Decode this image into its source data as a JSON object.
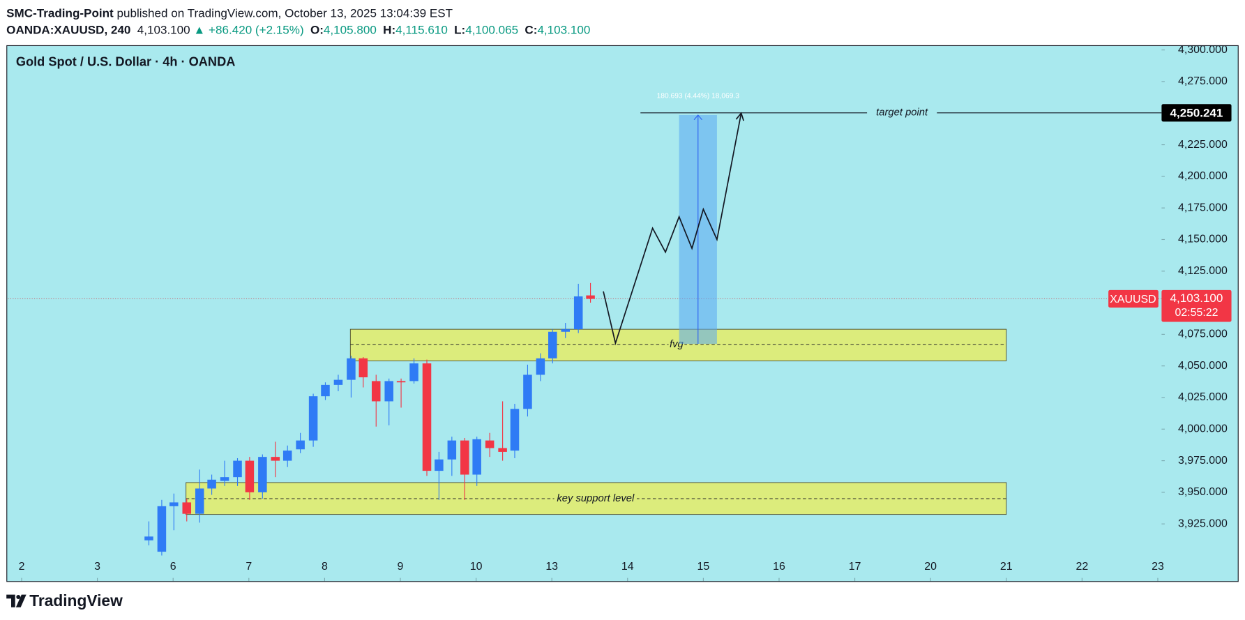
{
  "chart_data": {
    "type": "candlestick",
    "publisher": "SMC-Trading-Point",
    "published": "published on TradingView.com, October 13, 2025 13:04:39 EST",
    "symbol_line": "OANDA:XAUUSD, 240",
    "last_text": "4,103.100",
    "change_text": "▲ +86.420 (+2.15%)",
    "ohlc": [
      {
        "label": "O:",
        "value": "4,105.800"
      },
      {
        "label": "H:",
        "value": "4,115.610"
      },
      {
        "label": "L:",
        "value": "4,100.065"
      },
      {
        "label": "C:",
        "value": "4,103.100"
      }
    ],
    "title": "Gold Spot / U.S. Dollar · 4h · OANDA",
    "brand": "TradingView",
    "background": "#a9e9ee",
    "up_color": "#2f7bf5",
    "down_color": "#f23645",
    "zone_color": "#dcec7c",
    "xlim": [
      -0.18,
      15.05
    ],
    "xticks": [
      {
        "value": 0,
        "label": "2"
      },
      {
        "value": 1,
        "label": "3"
      },
      {
        "value": 2,
        "label": "6"
      },
      {
        "value": 3,
        "label": "7"
      },
      {
        "value": 4,
        "label": "8"
      },
      {
        "value": 5,
        "label": "9"
      },
      {
        "value": 6,
        "label": "10"
      },
      {
        "value": 7,
        "label": "13"
      },
      {
        "value": 8,
        "label": "14"
      },
      {
        "value": 9,
        "label": "15"
      },
      {
        "value": 10,
        "label": "16"
      },
      {
        "value": 11,
        "label": "17"
      },
      {
        "value": 12,
        "label": "20"
      },
      {
        "value": 13,
        "label": "21"
      },
      {
        "value": 14,
        "label": "22"
      },
      {
        "value": 15,
        "label": "23"
      }
    ],
    "ylim": [
      3896.7,
      4303.1
    ],
    "yticks": [
      {
        "value": 3925,
        "label": "3,925.000"
      },
      {
        "value": 3950,
        "label": "3,950.000"
      },
      {
        "value": 3975,
        "label": "3,975.000"
      },
      {
        "value": 4000,
        "label": "4,000.000"
      },
      {
        "value": 4025,
        "label": "4,025.000"
      },
      {
        "value": 4050,
        "label": "4,050.000"
      },
      {
        "value": 4075,
        "label": "4,075.000"
      },
      {
        "value": 4100,
        "label": "4,100.000"
      },
      {
        "value": 4125,
        "label": "4,125.000"
      },
      {
        "value": 4150,
        "label": "4,150.000"
      },
      {
        "value": 4175,
        "label": "4,175.000"
      },
      {
        "value": 4200,
        "label": "4,200.000"
      },
      {
        "value": 4225,
        "label": "4,225.000"
      },
      {
        "value": 4250,
        "label": "4,250.000"
      },
      {
        "value": 4275,
        "label": "4,275.000"
      },
      {
        "value": 4300,
        "label": "4,300.000"
      }
    ],
    "candles": {
      "x": [
        1.68,
        1.85,
        2.01,
        2.18,
        2.35,
        2.51,
        2.68,
        2.85,
        3.01,
        3.18,
        3.35,
        3.51,
        3.68,
        3.85,
        4.01,
        4.18,
        4.35,
        4.51,
        4.68,
        4.85,
        5.01,
        5.18,
        5.35,
        5.51,
        5.68,
        5.85,
        6.01,
        6.18,
        6.35,
        6.51,
        6.68,
        6.85,
        7.01,
        7.18,
        7.35,
        7.51
      ],
      "open": [
        3912,
        3903,
        3939,
        3942,
        3933,
        3953,
        3959,
        3962,
        3975,
        3950,
        3978,
        3975,
        3984,
        3991,
        4026,
        4035,
        4039,
        4056,
        4038,
        4022,
        4038,
        4038,
        4052,
        3967,
        3976,
        3991,
        3964,
        3991,
        3985,
        3983,
        4016,
        4043,
        4056,
        4077,
        4079,
        4105.8
      ],
      "high": [
        3927,
        3944,
        3949,
        3945,
        3968,
        3964,
        3975,
        3977,
        3978,
        3980,
        3990,
        3987,
        3997,
        4028,
        4037,
        4043,
        4058,
        4057,
        4043,
        4040,
        4040,
        4056,
        4055,
        3982,
        3994,
        3993,
        3994,
        3997,
        4022,
        4020,
        4051,
        4060,
        4079,
        4084,
        4115,
        4115.61
      ],
      "low": [
        3908,
        3900,
        3920,
        3927,
        3926,
        3948,
        3955,
        3955,
        3944,
        3945,
        3962,
        3970,
        3981,
        3986,
        4023,
        4030,
        4025,
        4033,
        4002,
        4003,
        4017,
        4036,
        3963,
        3944,
        3963,
        3944,
        3955,
        3978,
        3975,
        3977,
        4010,
        4038,
        4052,
        4072,
        4076,
        4100.065
      ],
      "close": [
        3915,
        3939,
        3942,
        3933,
        3953,
        3960,
        3962,
        3975,
        3950,
        3978,
        3975,
        3983,
        3991,
        4026,
        4035,
        4039,
        4056,
        4041,
        4022,
        4038,
        4037,
        4052,
        3967,
        3976,
        3991,
        3964,
        3992,
        3985,
        3982,
        4016,
        4043,
        4056,
        4077,
        4079,
        4105,
        4103.1
      ]
    },
    "zones": [
      {
        "label": "fvg",
        "x": [
          4.34,
          13.0
        ],
        "y": [
          4054,
          4079
        ],
        "mid": 4067
      },
      {
        "label": "key support level",
        "x": [
          2.17,
          13.0
        ],
        "y": [
          3932.5,
          3957.7
        ],
        "mid": 3945
      }
    ],
    "measure": {
      "label": "180.693 (4.44%) 18,069.3",
      "x": [
        8.68,
        9.18
      ],
      "y": [
        4067.5,
        4248.5
      ]
    },
    "projection": {
      "x": [
        7.68,
        7.84,
        8.33,
        8.5,
        8.68,
        8.85,
        9.0,
        9.18,
        9.5
      ],
      "y": [
        4109,
        4068,
        4159,
        4140,
        4168,
        4143,
        4174,
        4150,
        4250
      ]
    },
    "target": {
      "label": "target point",
      "value": 4250.241,
      "value_label": "4,250.241",
      "x_start": 8.17
    },
    "last_price": {
      "symbol": "XAUUSD",
      "value": 4103.1,
      "value_label": "4,103.100",
      "countdown": "02:55:22"
    }
  }
}
